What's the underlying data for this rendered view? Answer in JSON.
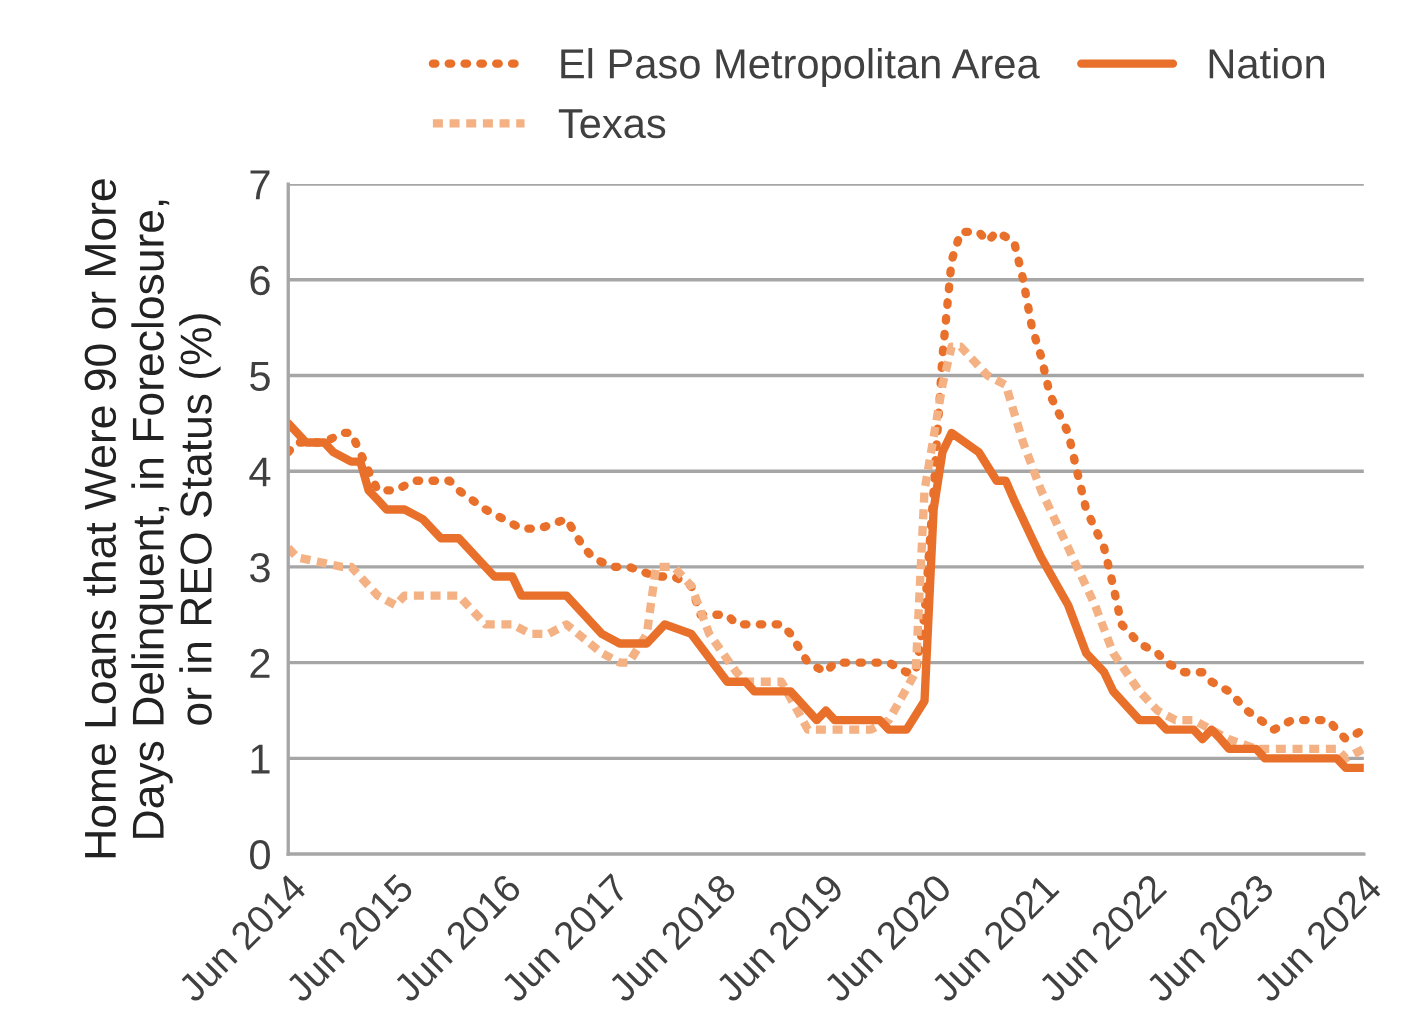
{
  "chart_data": {
    "type": "line",
    "ylabel": "Home Loans that Were 90 or More\nDays Delinquent, in Foreclosure,\nor in REO Status (%)",
    "xlim": [
      "2014-06",
      "2024-06"
    ],
    "ylim": [
      0,
      7
    ],
    "yticks": [
      0,
      1,
      2,
      3,
      4,
      5,
      6,
      7
    ],
    "xticks": [
      {
        "value": "2014-06",
        "label": "Jun 2014"
      },
      {
        "value": "2015-06",
        "label": "Jun 2015"
      },
      {
        "value": "2016-06",
        "label": "Jun 2016"
      },
      {
        "value": "2017-06",
        "label": "Jun 2017"
      },
      {
        "value": "2018-06",
        "label": "Jun 2018"
      },
      {
        "value": "2019-06",
        "label": "Jun 2019"
      },
      {
        "value": "2020-06",
        "label": "Jun 2020"
      },
      {
        "value": "2021-06",
        "label": "Jun 2021"
      },
      {
        "value": "2022-06",
        "label": "Jun 2022"
      },
      {
        "value": "2023-06",
        "label": "Jun 2023"
      },
      {
        "value": "2024-06",
        "label": "Jun 2024"
      }
    ],
    "grid": "y",
    "legend": "top",
    "series": [
      {
        "name": "El Paso Metropolitan Area",
        "color": "#e8702a",
        "line_style": "dotted",
        "x": [
          "2014-06",
          "2014-07",
          "2014-10",
          "2014-12",
          "2015-01",
          "2015-03",
          "2015-04",
          "2015-06",
          "2015-08",
          "2015-12",
          "2016-01",
          "2016-04",
          "2016-06",
          "2016-08",
          "2016-10",
          "2017-01",
          "2017-03",
          "2017-04",
          "2017-06",
          "2017-08",
          "2017-11",
          "2018-01",
          "2018-03",
          "2018-04",
          "2018-07",
          "2018-08",
          "2019-01",
          "2019-02",
          "2019-04",
          "2019-06",
          "2019-07",
          "2020-01",
          "2020-03",
          "2020-04",
          "2020-05",
          "2020-06",
          "2020-07",
          "2020-08",
          "2020-09",
          "2020-11",
          "2020-12",
          "2021-01",
          "2021-03",
          "2021-04",
          "2021-05",
          "2021-06",
          "2021-07",
          "2021-09",
          "2021-10",
          "2021-11",
          "2022-01",
          "2022-02",
          "2022-03",
          "2022-05",
          "2022-07",
          "2022-08",
          "2022-10",
          "2022-12",
          "2023-01",
          "2023-03",
          "2023-05",
          "2023-08",
          "2023-10",
          "2024-02",
          "2024-03",
          "2024-04",
          "2024-06"
        ],
        "values": [
          4.2,
          4.3,
          4.3,
          4.4,
          4.4,
          4.0,
          3.8,
          3.8,
          3.9,
          3.9,
          3.8,
          3.6,
          3.5,
          3.4,
          3.4,
          3.5,
          3.2,
          3.1,
          3.0,
          3.0,
          2.9,
          2.9,
          2.8,
          2.5,
          2.5,
          2.4,
          2.4,
          2.3,
          2.0,
          1.9,
          2.0,
          2.0,
          1.9,
          1.9,
          2.5,
          3.8,
          5.2,
          6.2,
          6.5,
          6.5,
          6.4,
          6.5,
          6.4,
          6.0,
          5.5,
          5.2,
          4.8,
          4.4,
          4.0,
          3.6,
          3.2,
          2.8,
          2.4,
          2.2,
          2.1,
          2.0,
          1.9,
          1.9,
          1.8,
          1.7,
          1.5,
          1.3,
          1.4,
          1.4,
          1.3,
          1.2,
          1.3
        ]
      },
      {
        "name": "Texas",
        "color": "#f4b183",
        "line_style": "dashed",
        "x": [
          "2014-06",
          "2014-07",
          "2014-12",
          "2015-01",
          "2015-04",
          "2015-06",
          "2015-07",
          "2016-01",
          "2016-04",
          "2016-07",
          "2016-09",
          "2016-11",
          "2017-01",
          "2017-05",
          "2017-07",
          "2017-08",
          "2017-10",
          "2017-11",
          "2018-01",
          "2018-03",
          "2018-05",
          "2018-08",
          "2018-09",
          "2019-01",
          "2019-04",
          "2019-06",
          "2019-11",
          "2020-01",
          "2020-04",
          "2020-05",
          "2020-07",
          "2020-08",
          "2020-09",
          "2020-12",
          "2021-02",
          "2021-04",
          "2021-06",
          "2021-09",
          "2021-12",
          "2022-02",
          "2022-05",
          "2022-07",
          "2022-09",
          "2022-11",
          "2023-03",
          "2023-06",
          "2024-03",
          "2024-04",
          "2024-06"
        ],
        "values": [
          3.2,
          3.1,
          3.0,
          3.0,
          2.7,
          2.6,
          2.7,
          2.7,
          2.4,
          2.4,
          2.3,
          2.3,
          2.4,
          2.1,
          2.0,
          2.0,
          2.3,
          3.0,
          3.0,
          2.8,
          2.3,
          1.9,
          1.8,
          1.8,
          1.3,
          1.3,
          1.3,
          1.4,
          1.9,
          3.8,
          4.9,
          5.3,
          5.3,
          5.0,
          4.9,
          4.3,
          3.8,
          3.2,
          2.6,
          2.1,
          1.7,
          1.5,
          1.4,
          1.4,
          1.2,
          1.1,
          1.1,
          1.0,
          1.1
        ]
      },
      {
        "name": "Nation",
        "color": "#e8702a",
        "line_style": "solid",
        "x": [
          "2014-06",
          "2014-08",
          "2014-10",
          "2014-11",
          "2015-01",
          "2015-02",
          "2015-03",
          "2015-04",
          "2015-05",
          "2015-07",
          "2015-09",
          "2015-11",
          "2016-01",
          "2016-05",
          "2016-07",
          "2016-08",
          "2017-01",
          "2017-05",
          "2017-07",
          "2017-10",
          "2017-12",
          "2018-03",
          "2018-07",
          "2018-09",
          "2018-10",
          "2019-02",
          "2019-05",
          "2019-06",
          "2019-07",
          "2019-12",
          "2020-01",
          "2020-03",
          "2020-05",
          "2020-06",
          "2020-07",
          "2020-08",
          "2020-11",
          "2021-01",
          "2021-02",
          "2021-03",
          "2021-05",
          "2021-06",
          "2021-09",
          "2021-11",
          "2022-01",
          "2022-02",
          "2022-05",
          "2022-07",
          "2022-08",
          "2022-11",
          "2022-12",
          "2023-01",
          "2023-02",
          "2023-03",
          "2023-06",
          "2023-07",
          "2024-03",
          "2024-04",
          "2024-06"
        ],
        "values": [
          4.5,
          4.3,
          4.3,
          4.2,
          4.1,
          4.1,
          3.8,
          3.7,
          3.6,
          3.6,
          3.5,
          3.3,
          3.3,
          2.9,
          2.9,
          2.7,
          2.7,
          2.3,
          2.2,
          2.2,
          2.4,
          2.3,
          1.8,
          1.8,
          1.7,
          1.7,
          1.4,
          1.5,
          1.4,
          1.4,
          1.3,
          1.3,
          1.6,
          3.6,
          4.2,
          4.4,
          4.2,
          3.9,
          3.9,
          3.7,
          3.3,
          3.1,
          2.6,
          2.1,
          1.9,
          1.7,
          1.4,
          1.4,
          1.3,
          1.3,
          1.2,
          1.3,
          1.2,
          1.1,
          1.1,
          1.0,
          1.0,
          0.9,
          0.9
        ]
      }
    ]
  }
}
